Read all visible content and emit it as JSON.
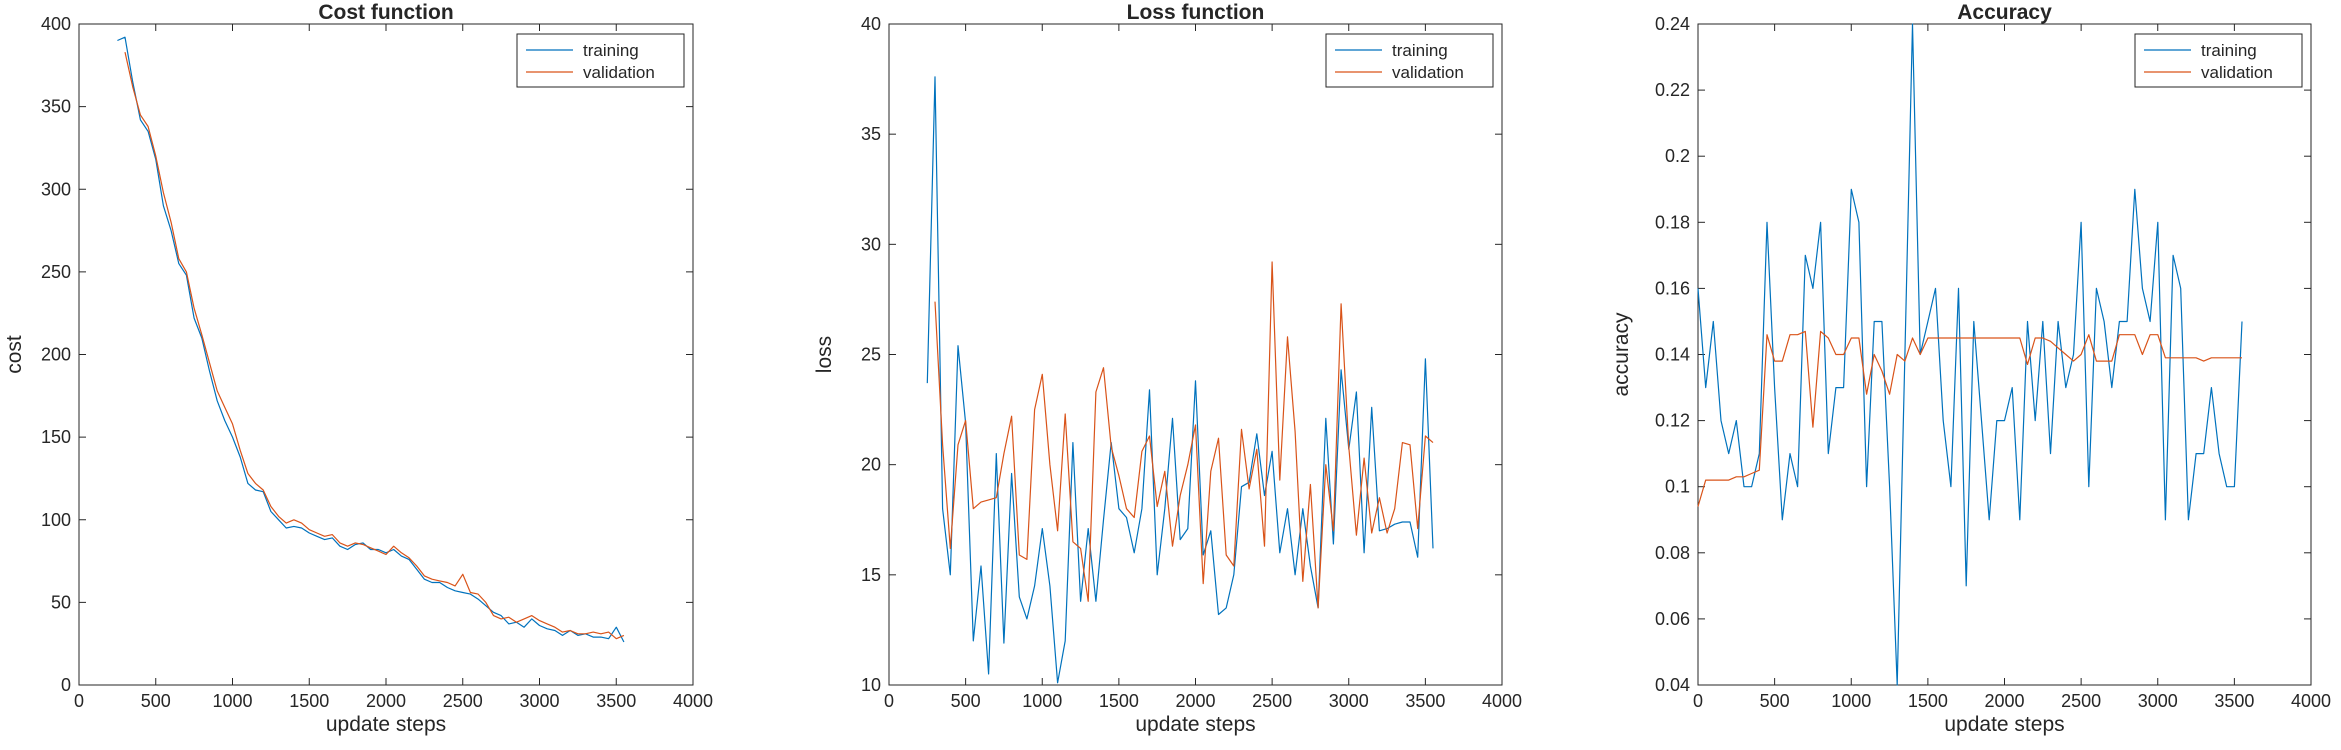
{
  "colors": {
    "training": "#0072BD",
    "validation": "#D95319",
    "axis": "#262626"
  },
  "chart_data": [
    {
      "type": "line",
      "title": "Cost function",
      "xlabel": "update steps",
      "ylabel": "cost",
      "xlim": [
        0,
        4000
      ],
      "ylim": [
        0,
        400
      ],
      "xticks": [
        0,
        500,
        1000,
        1500,
        2000,
        2500,
        3000,
        3500,
        4000
      ],
      "yticks": [
        0,
        50,
        100,
        150,
        200,
        250,
        300,
        350,
        400
      ],
      "legend": "top-right",
      "series": [
        {
          "name": "training",
          "x": [
            250,
            300,
            350,
            400,
            450,
            500,
            550,
            600,
            650,
            700,
            750,
            800,
            850,
            900,
            950,
            1000,
            1050,
            1100,
            1150,
            1200,
            1250,
            1300,
            1350,
            1400,
            1450,
            1500,
            1550,
            1600,
            1650,
            1700,
            1750,
            1800,
            1850,
            1900,
            1950,
            2000,
            2050,
            2100,
            2150,
            2200,
            2250,
            2300,
            2350,
            2400,
            2450,
            2500,
            2550,
            2600,
            2650,
            2700,
            2750,
            2800,
            2850,
            2900,
            2950,
            3000,
            3050,
            3100,
            3150,
            3200,
            3250,
            3300,
            3350,
            3400,
            3450,
            3500,
            3550
          ],
          "y": [
            390,
            392,
            365,
            342,
            335,
            318,
            290,
            275,
            255,
            248,
            222,
            210,
            190,
            172,
            160,
            150,
            138,
            122,
            118,
            117,
            105,
            100,
            95,
            96,
            95,
            92,
            90,
            88,
            89,
            84,
            82,
            85,
            86,
            82,
            82,
            80,
            82,
            78,
            76,
            70,
            64,
            62,
            62,
            59,
            57,
            56,
            55,
            52,
            48,
            44,
            42,
            37,
            38,
            35,
            40,
            36,
            34,
            33,
            30,
            33,
            30,
            31,
            29,
            29,
            28,
            35,
            26
          ]
        },
        {
          "name": "validation",
          "x": [
            300,
            350,
            400,
            450,
            500,
            550,
            600,
            650,
            700,
            750,
            800,
            850,
            900,
            950,
            1000,
            1050,
            1100,
            1150,
            1200,
            1250,
            1300,
            1350,
            1400,
            1450,
            1500,
            1550,
            1600,
            1650,
            1700,
            1750,
            1800,
            1850,
            1900,
            1950,
            2000,
            2050,
            2100,
            2150,
            2200,
            2250,
            2300,
            2350,
            2400,
            2450,
            2500,
            2550,
            2600,
            2650,
            2700,
            2750,
            2800,
            2850,
            2900,
            2950,
            3000,
            3050,
            3100,
            3150,
            3200,
            3250,
            3300,
            3350,
            3400,
            3450,
            3500,
            3550
          ],
          "y": [
            383,
            362,
            345,
            338,
            320,
            298,
            280,
            258,
            250,
            228,
            212,
            195,
            178,
            168,
            158,
            142,
            128,
            122,
            118,
            108,
            102,
            98,
            100,
            98,
            94,
            92,
            90,
            91,
            86,
            84,
            86,
            85,
            83,
            81,
            79,
            84,
            80,
            77,
            72,
            66,
            64,
            63,
            62,
            60,
            67,
            56,
            55,
            50,
            42,
            40,
            41,
            38,
            40,
            42,
            39,
            37,
            35,
            32,
            33,
            31,
            31,
            32,
            31,
            32,
            28,
            30
          ]
        }
      ]
    },
    {
      "type": "line",
      "title": "Loss function",
      "xlabel": "update steps",
      "ylabel": "loss",
      "xlim": [
        0,
        4000
      ],
      "ylim": [
        10,
        40
      ],
      "xticks": [
        0,
        500,
        1000,
        1500,
        2000,
        2500,
        3000,
        3500,
        4000
      ],
      "yticks": [
        10,
        15,
        20,
        25,
        30,
        35,
        40
      ],
      "legend": "top-right",
      "series": [
        {
          "name": "training",
          "x": [
            250,
            300,
            350,
            400,
            450,
            500,
            550,
            600,
            650,
            700,
            750,
            800,
            850,
            900,
            950,
            1000,
            1050,
            1100,
            1150,
            1200,
            1250,
            1300,
            1350,
            1400,
            1450,
            1500,
            1550,
            1600,
            1650,
            1700,
            1750,
            1800,
            1850,
            1900,
            1950,
            2000,
            2050,
            2100,
            2150,
            2200,
            2250,
            2300,
            2350,
            2400,
            2450,
            2500,
            2550,
            2600,
            2650,
            2700,
            2750,
            2800,
            2850,
            2900,
            2950,
            3000,
            3050,
            3100,
            3150,
            3200,
            3250,
            3300,
            3350,
            3400,
            3450,
            3500,
            3550
          ],
          "y": [
            23.7,
            37.6,
            18.0,
            15.0,
            25.4,
            21.9,
            12.0,
            15.4,
            10.5,
            20.5,
            11.9,
            19.6,
            14.0,
            13.0,
            14.5,
            17.1,
            14.5,
            10.1,
            12.0,
            21.0,
            13.8,
            17.1,
            13.8,
            17.5,
            21.0,
            18.0,
            17.6,
            16.0,
            18.0,
            23.4,
            15.0,
            18.0,
            22.1,
            16.6,
            17.1,
            23.8,
            15.9,
            17.0,
            13.2,
            13.5,
            15.0,
            19.0,
            19.2,
            21.4,
            18.6,
            20.6,
            16.0,
            18.0,
            15.0,
            18.0,
            15.4,
            13.5,
            22.1,
            16.4,
            24.3,
            20.7,
            23.3,
            16.0,
            22.6,
            17.0,
            17.1,
            17.3,
            17.4,
            17.4,
            15.8,
            24.8,
            16.2
          ]
        },
        {
          "name": "validation",
          "x": [
            300,
            350,
            400,
            450,
            500,
            550,
            600,
            650,
            700,
            750,
            800,
            850,
            900,
            950,
            1000,
            1050,
            1100,
            1150,
            1200,
            1250,
            1300,
            1350,
            1400,
            1450,
            1500,
            1550,
            1600,
            1650,
            1700,
            1750,
            1800,
            1850,
            1900,
            1950,
            2000,
            2050,
            2100,
            2150,
            2200,
            2250,
            2300,
            2350,
            2400,
            2450,
            2500,
            2550,
            2600,
            2650,
            2700,
            2750,
            2800,
            2850,
            2900,
            2950,
            3000,
            3050,
            3100,
            3150,
            3200,
            3250,
            3300,
            3350,
            3400,
            3450,
            3500,
            3550
          ],
          "y": [
            27.4,
            20.9,
            16.2,
            20.9,
            22.0,
            18.0,
            18.3,
            18.4,
            18.5,
            20.5,
            22.2,
            15.9,
            15.7,
            22.5,
            24.1,
            20.0,
            17.0,
            22.3,
            16.5,
            16.2,
            13.8,
            23.3,
            24.4,
            20.8,
            19.5,
            18.0,
            17.6,
            20.6,
            21.3,
            18.1,
            19.7,
            16.3,
            18.6,
            20.0,
            21.8,
            14.6,
            19.7,
            21.2,
            15.9,
            15.4,
            21.6,
            18.9,
            20.7,
            16.3,
            29.2,
            19.3,
            25.8,
            21.5,
            14.7,
            19.1,
            13.5,
            20.0,
            17.0,
            27.3,
            20.8,
            16.8,
            20.3,
            16.9,
            18.5,
            16.9,
            18.0,
            21.0,
            20.9,
            17.1,
            21.3,
            21.0
          ]
        }
      ]
    },
    {
      "type": "line",
      "title": "Accuracy",
      "xlabel": "update steps",
      "ylabel": "accuracy",
      "xlim": [
        0,
        4000
      ],
      "ylim": [
        0.04,
        0.24
      ],
      "xticks": [
        0,
        500,
        1000,
        1500,
        2000,
        2500,
        3000,
        3500,
        4000
      ],
      "yticks": [
        0.04,
        0.06,
        0.08,
        0.1,
        0.12,
        0.14,
        0.16,
        0.18,
        0.2,
        0.22,
        0.24
      ],
      "ytick_labels": [
        "0.04",
        "0.06",
        "0.08",
        "0.1",
        "0.12",
        "0.14",
        "0.16",
        "0.18",
        "0.2",
        "0.22",
        "0.24"
      ],
      "legend": "top-right",
      "series": [
        {
          "name": "training",
          "x": [
            0,
            50,
            100,
            150,
            200,
            250,
            300,
            350,
            400,
            450,
            500,
            550,
            600,
            650,
            700,
            750,
            800,
            850,
            900,
            950,
            1000,
            1050,
            1100,
            1150,
            1200,
            1250,
            1300,
            1350,
            1400,
            1450,
            1500,
            1550,
            1600,
            1650,
            1700,
            1750,
            1800,
            1850,
            1900,
            1950,
            2000,
            2050,
            2100,
            2150,
            2200,
            2250,
            2300,
            2350,
            2400,
            2450,
            2500,
            2550,
            2600,
            2650,
            2700,
            2750,
            2800,
            2850,
            2900,
            2950,
            3000,
            3050,
            3100,
            3150,
            3200,
            3250,
            3300,
            3350,
            3400,
            3450,
            3500,
            3550
          ],
          "y": [
            0.16,
            0.13,
            0.15,
            0.12,
            0.11,
            0.12,
            0.1,
            0.1,
            0.11,
            0.18,
            0.13,
            0.09,
            0.11,
            0.1,
            0.17,
            0.16,
            0.18,
            0.11,
            0.13,
            0.13,
            0.19,
            0.18,
            0.1,
            0.15,
            0.15,
            0.1,
            0.04,
            0.14,
            0.24,
            0.14,
            0.15,
            0.16,
            0.12,
            0.1,
            0.16,
            0.07,
            0.15,
            0.12,
            0.09,
            0.12,
            0.12,
            0.13,
            0.09,
            0.15,
            0.12,
            0.15,
            0.11,
            0.15,
            0.13,
            0.14,
            0.18,
            0.1,
            0.16,
            0.15,
            0.13,
            0.15,
            0.15,
            0.19,
            0.16,
            0.15,
            0.18,
            0.09,
            0.17,
            0.16,
            0.09,
            0.11,
            0.11,
            0.13,
            0.11,
            0.1,
            0.1,
            0.15
          ]
        },
        {
          "name": "validation",
          "x": [
            0,
            50,
            100,
            150,
            200,
            250,
            300,
            350,
            400,
            450,
            500,
            550,
            600,
            650,
            700,
            750,
            800,
            850,
            900,
            950,
            1000,
            1050,
            1100,
            1150,
            1200,
            1250,
            1300,
            1350,
            1400,
            1450,
            1500,
            1550,
            1600,
            1650,
            1700,
            1750,
            1800,
            1850,
            1900,
            1950,
            2000,
            2050,
            2100,
            2150,
            2200,
            2250,
            2300,
            2350,
            2400,
            2450,
            2500,
            2550,
            2600,
            2650,
            2700,
            2750,
            2800,
            2850,
            2900,
            2950,
            3000,
            3050,
            3100,
            3150,
            3200,
            3250,
            3300,
            3350,
            3400,
            3450,
            3500,
            3550
          ],
          "y": [
            0.094,
            0.102,
            0.102,
            0.102,
            0.102,
            0.103,
            0.103,
            0.104,
            0.105,
            0.146,
            0.138,
            0.138,
            0.146,
            0.146,
            0.147,
            0.118,
            0.147,
            0.145,
            0.14,
            0.14,
            0.145,
            0.145,
            0.128,
            0.14,
            0.135,
            0.128,
            0.14,
            0.138,
            0.145,
            0.14,
            0.145,
            0.145,
            0.145,
            0.145,
            0.145,
            0.145,
            0.145,
            0.145,
            0.145,
            0.145,
            0.145,
            0.145,
            0.145,
            0.137,
            0.145,
            0.145,
            0.144,
            0.142,
            0.14,
            0.138,
            0.14,
            0.146,
            0.138,
            0.138,
            0.138,
            0.146,
            0.146,
            0.146,
            0.14,
            0.146,
            0.146,
            0.139,
            0.139,
            0.139,
            0.139,
            0.139,
            0.138,
            0.139,
            0.139,
            0.139,
            0.139,
            0.139
          ]
        }
      ]
    }
  ]
}
